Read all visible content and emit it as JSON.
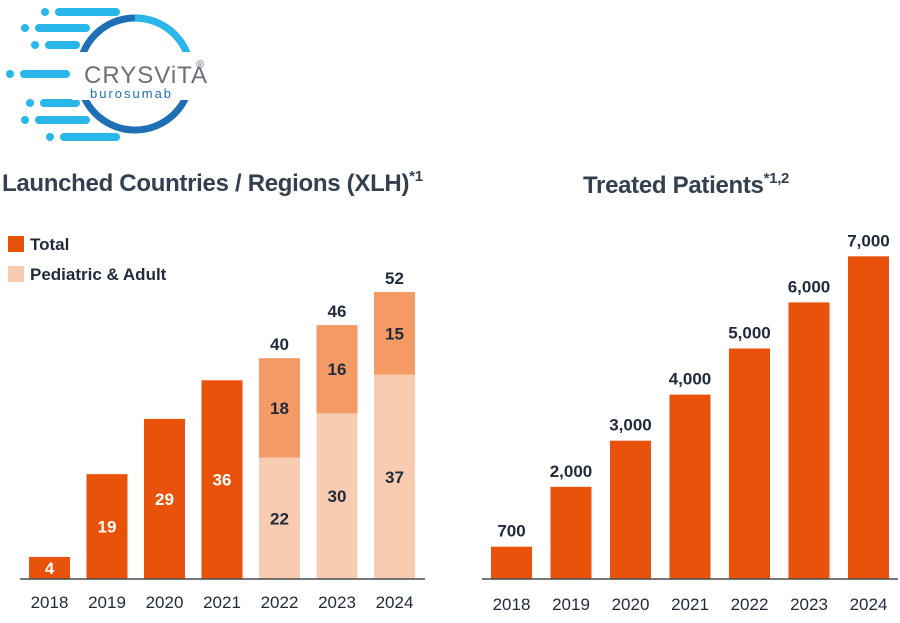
{
  "logo": {
    "brand": "CRYSViTA",
    "registered_mark": "®",
    "generic_name": "burosumab",
    "colors": {
      "ring_dark": "#1f6fb4",
      "ring_light": "#29b6e8",
      "text": "#6b6f7a"
    }
  },
  "colors": {
    "total": "#e8520a",
    "segment_top": "#f39a65",
    "pediatric_adult": "#f8ccb0",
    "axis": "#4a4a4a"
  },
  "chart_data": [
    {
      "type": "bar",
      "title": "Launched Countries / Regions (XLH)",
      "title_superscript": "*1",
      "categories": [
        "2018",
        "2019",
        "2020",
        "2021",
        "2022",
        "2023",
        "2024"
      ],
      "legend": [
        "Total",
        "Pediatric & Adult"
      ],
      "legend_position": "top-left",
      "series": [
        {
          "name": "Total",
          "values": [
            4,
            19,
            29,
            36,
            null,
            null,
            null
          ]
        },
        {
          "name": "Pediatric & Adult",
          "values": [
            null,
            null,
            null,
            null,
            22,
            30,
            37
          ]
        },
        {
          "values": [
            null,
            null,
            null,
            null,
            18,
            16,
            15
          ]
        }
      ],
      "totals": [
        null,
        null,
        null,
        null,
        40,
        46,
        52
      ],
      "ylim": [
        0,
        55
      ],
      "grid": false
    },
    {
      "type": "bar",
      "title": "Treated Patients",
      "title_superscript": "*1,2",
      "categories": [
        "2018",
        "2019",
        "2020",
        "2021",
        "2022",
        "2023",
        "2024"
      ],
      "values": [
        700,
        2000,
        3000,
        4000,
        5000,
        6000,
        7000
      ],
      "value_labels": [
        "700",
        "2,000",
        "3,000",
        "4,000",
        "5,000",
        "6,000",
        "7,000"
      ],
      "ylim": [
        0,
        7350
      ],
      "grid": false
    }
  ]
}
